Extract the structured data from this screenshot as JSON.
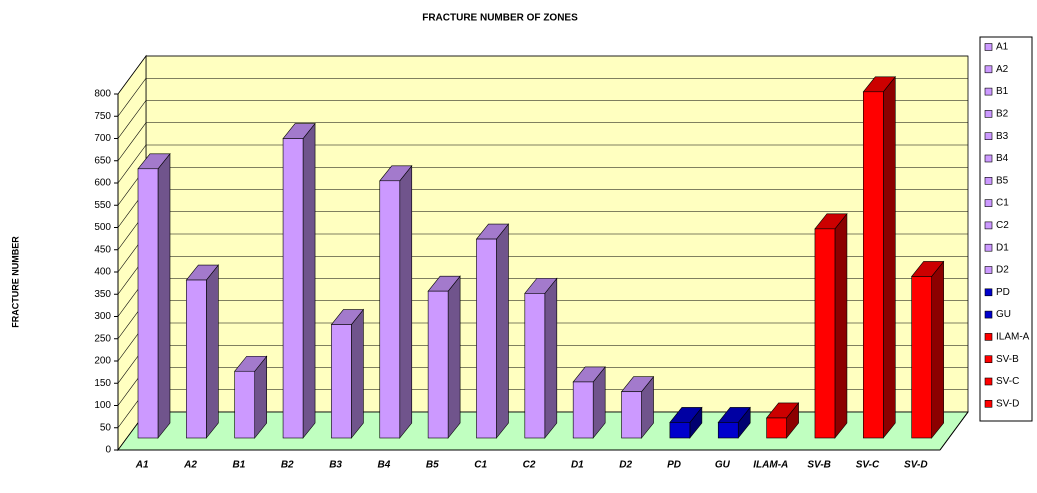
{
  "chart_data": {
    "type": "bar3d",
    "title": "FRACTURE NUMBER OF ZONES",
    "ylabel": "FRACTURE NUMBER",
    "categories": [
      "A1",
      "A2",
      "B1",
      "B2",
      "B3",
      "B4",
      "B5",
      "C1",
      "C2",
      "D1",
      "D2",
      "PD",
      "GU",
      "ILAM-A",
      "SV-B",
      "SV-C",
      "SV-D"
    ],
    "values": [
      605,
      355,
      150,
      673,
      255,
      578,
      330,
      447,
      325,
      126,
      104,
      35,
      35,
      45,
      470,
      778,
      363
    ],
    "colors": [
      "#cc99ff",
      "#cc99ff",
      "#cc99ff",
      "#cc99ff",
      "#cc99ff",
      "#cc99ff",
      "#cc99ff",
      "#cc99ff",
      "#cc99ff",
      "#cc99ff",
      "#cc99ff",
      "#0000cc",
      "#0000cc",
      "#ff0000",
      "#ff0000",
      "#ff0000",
      "#ff0000"
    ],
    "ylim": [
      0,
      800
    ],
    "yticks": [
      0,
      50,
      100,
      150,
      200,
      250,
      300,
      350,
      400,
      450,
      500,
      550,
      600,
      650,
      700,
      750,
      800
    ],
    "grid": true,
    "legend": "right"
  }
}
